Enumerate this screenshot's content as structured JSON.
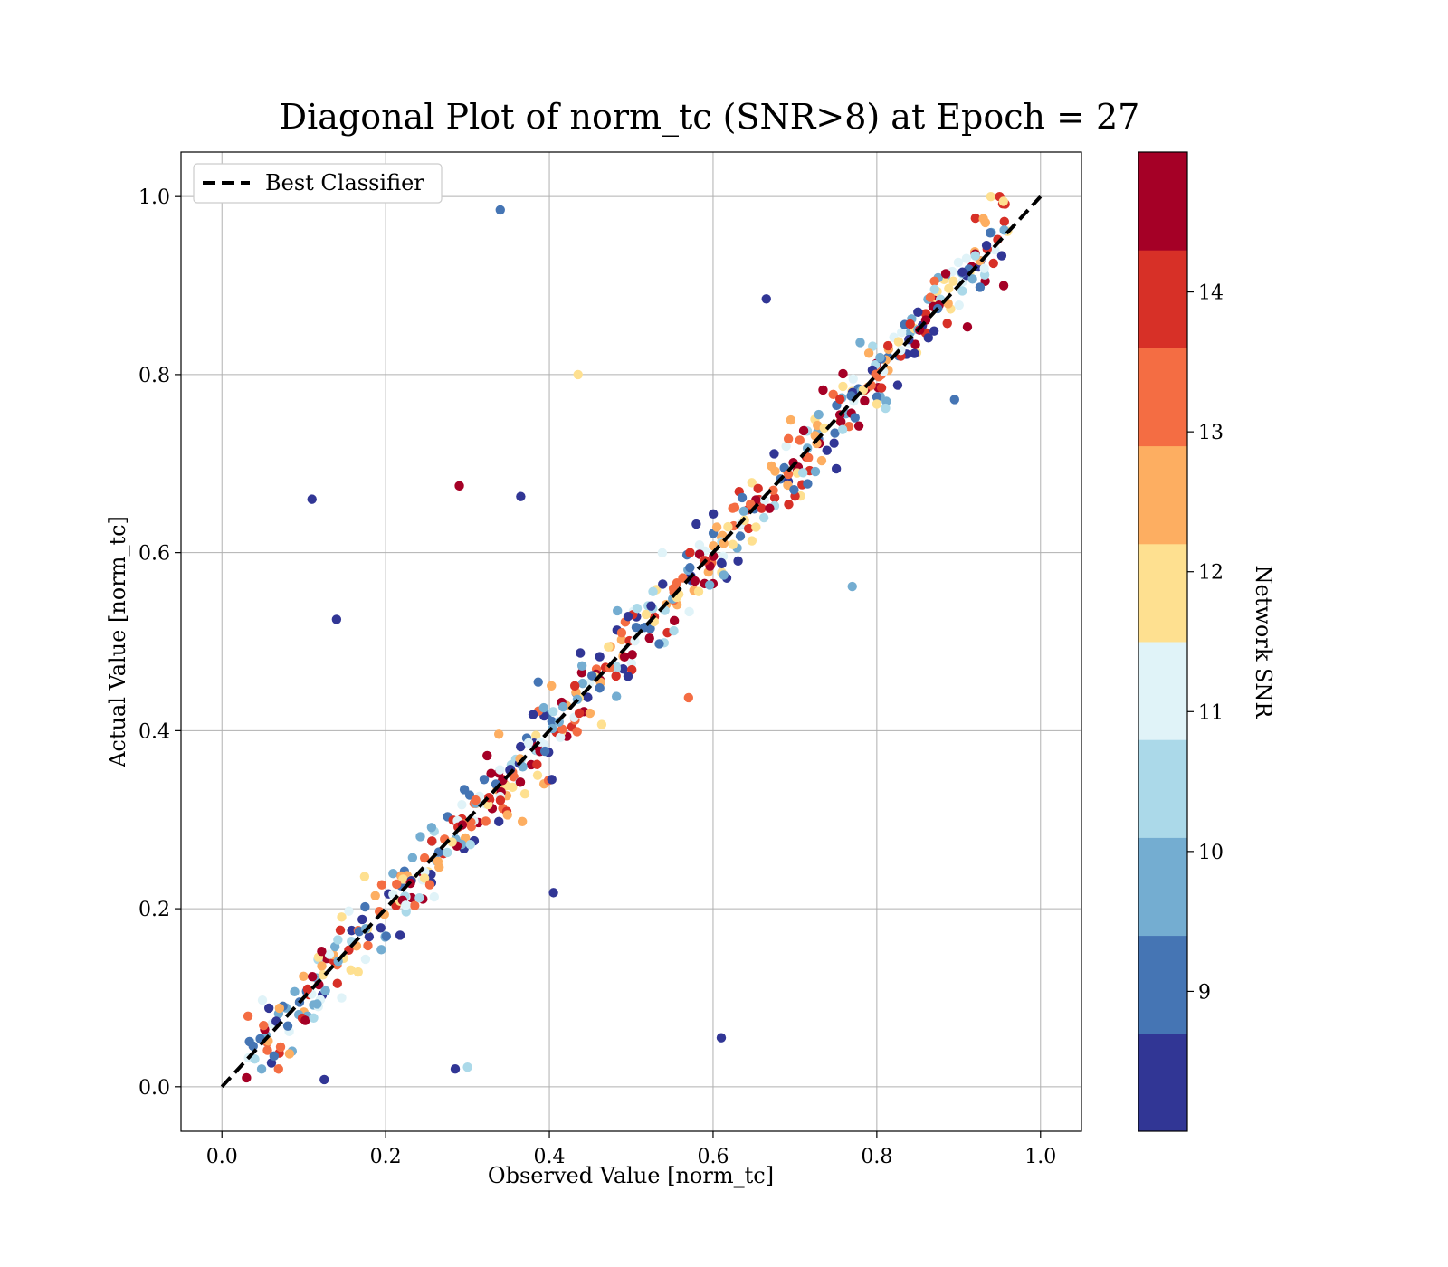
{
  "chart_data": {
    "type": "scatter",
    "title": "Diagonal Plot of norm_tc (SNR>8) at Epoch = 27",
    "xlabel": "Observed Value [norm_tc]",
    "ylabel": "Actual Value [norm_tc]",
    "xlim": [
      -0.05,
      1.05
    ],
    "ylim": [
      -0.05,
      1.05
    ],
    "xticks": [
      "0.0",
      "0.2",
      "0.4",
      "0.6",
      "0.8",
      "1.0"
    ],
    "yticks": [
      "0.0",
      "0.2",
      "0.4",
      "0.6",
      "0.8",
      "1.0"
    ],
    "grid": true,
    "legend": {
      "position": "top-left",
      "entries": [
        {
          "label": "Best Classifier",
          "style": "dashed",
          "color": "#000000"
        }
      ]
    },
    "reference_line": {
      "label": "Best Classifier",
      "x": [
        0,
        1
      ],
      "y": [
        0,
        1
      ]
    },
    "colorbar": {
      "label": "Network SNR",
      "range": [
        8,
        15
      ],
      "ticks": [
        "9",
        "10",
        "11",
        "12",
        "13",
        "14"
      ],
      "colors": [
        "#313695",
        "#4575b4",
        "#74add1",
        "#abd9e9",
        "#e0f3f8",
        "#fee090",
        "#fdae61",
        "#f46d43",
        "#d73027",
        "#a50026"
      ]
    },
    "points_shown": [
      {
        "x": 0.34,
        "y": 0.985,
        "snr": 9.2
      },
      {
        "x": 0.11,
        "y": 0.66,
        "snr": 8.3
      },
      {
        "x": 0.14,
        "y": 0.525,
        "snr": 8.3
      },
      {
        "x": 0.29,
        "y": 0.675,
        "snr": 14.6
      },
      {
        "x": 0.365,
        "y": 0.663,
        "snr": 8.4
      },
      {
        "x": 0.435,
        "y": 0.8,
        "snr": 11.8
      },
      {
        "x": 0.61,
        "y": 0.055,
        "snr": 8.3
      },
      {
        "x": 0.405,
        "y": 0.218,
        "snr": 8.3
      },
      {
        "x": 0.285,
        "y": 0.02,
        "snr": 8.3
      },
      {
        "x": 0.3,
        "y": 0.022,
        "snr": 10.2
      },
      {
        "x": 0.665,
        "y": 0.885,
        "snr": 8.6
      },
      {
        "x": 0.77,
        "y": 0.562,
        "snr": 9.8
      },
      {
        "x": 0.57,
        "y": 0.437,
        "snr": 13.4
      },
      {
        "x": 0.125,
        "y": 0.008,
        "snr": 8.5
      },
      {
        "x": 0.03,
        "y": 0.01,
        "snr": 14.5
      },
      {
        "x": 0.95,
        "y": 1.0,
        "snr": 14.2
      },
      {
        "x": 0.955,
        "y": 0.9,
        "snr": 14.6
      },
      {
        "x": 0.895,
        "y": 0.772,
        "snr": 9.2
      }
    ]
  }
}
